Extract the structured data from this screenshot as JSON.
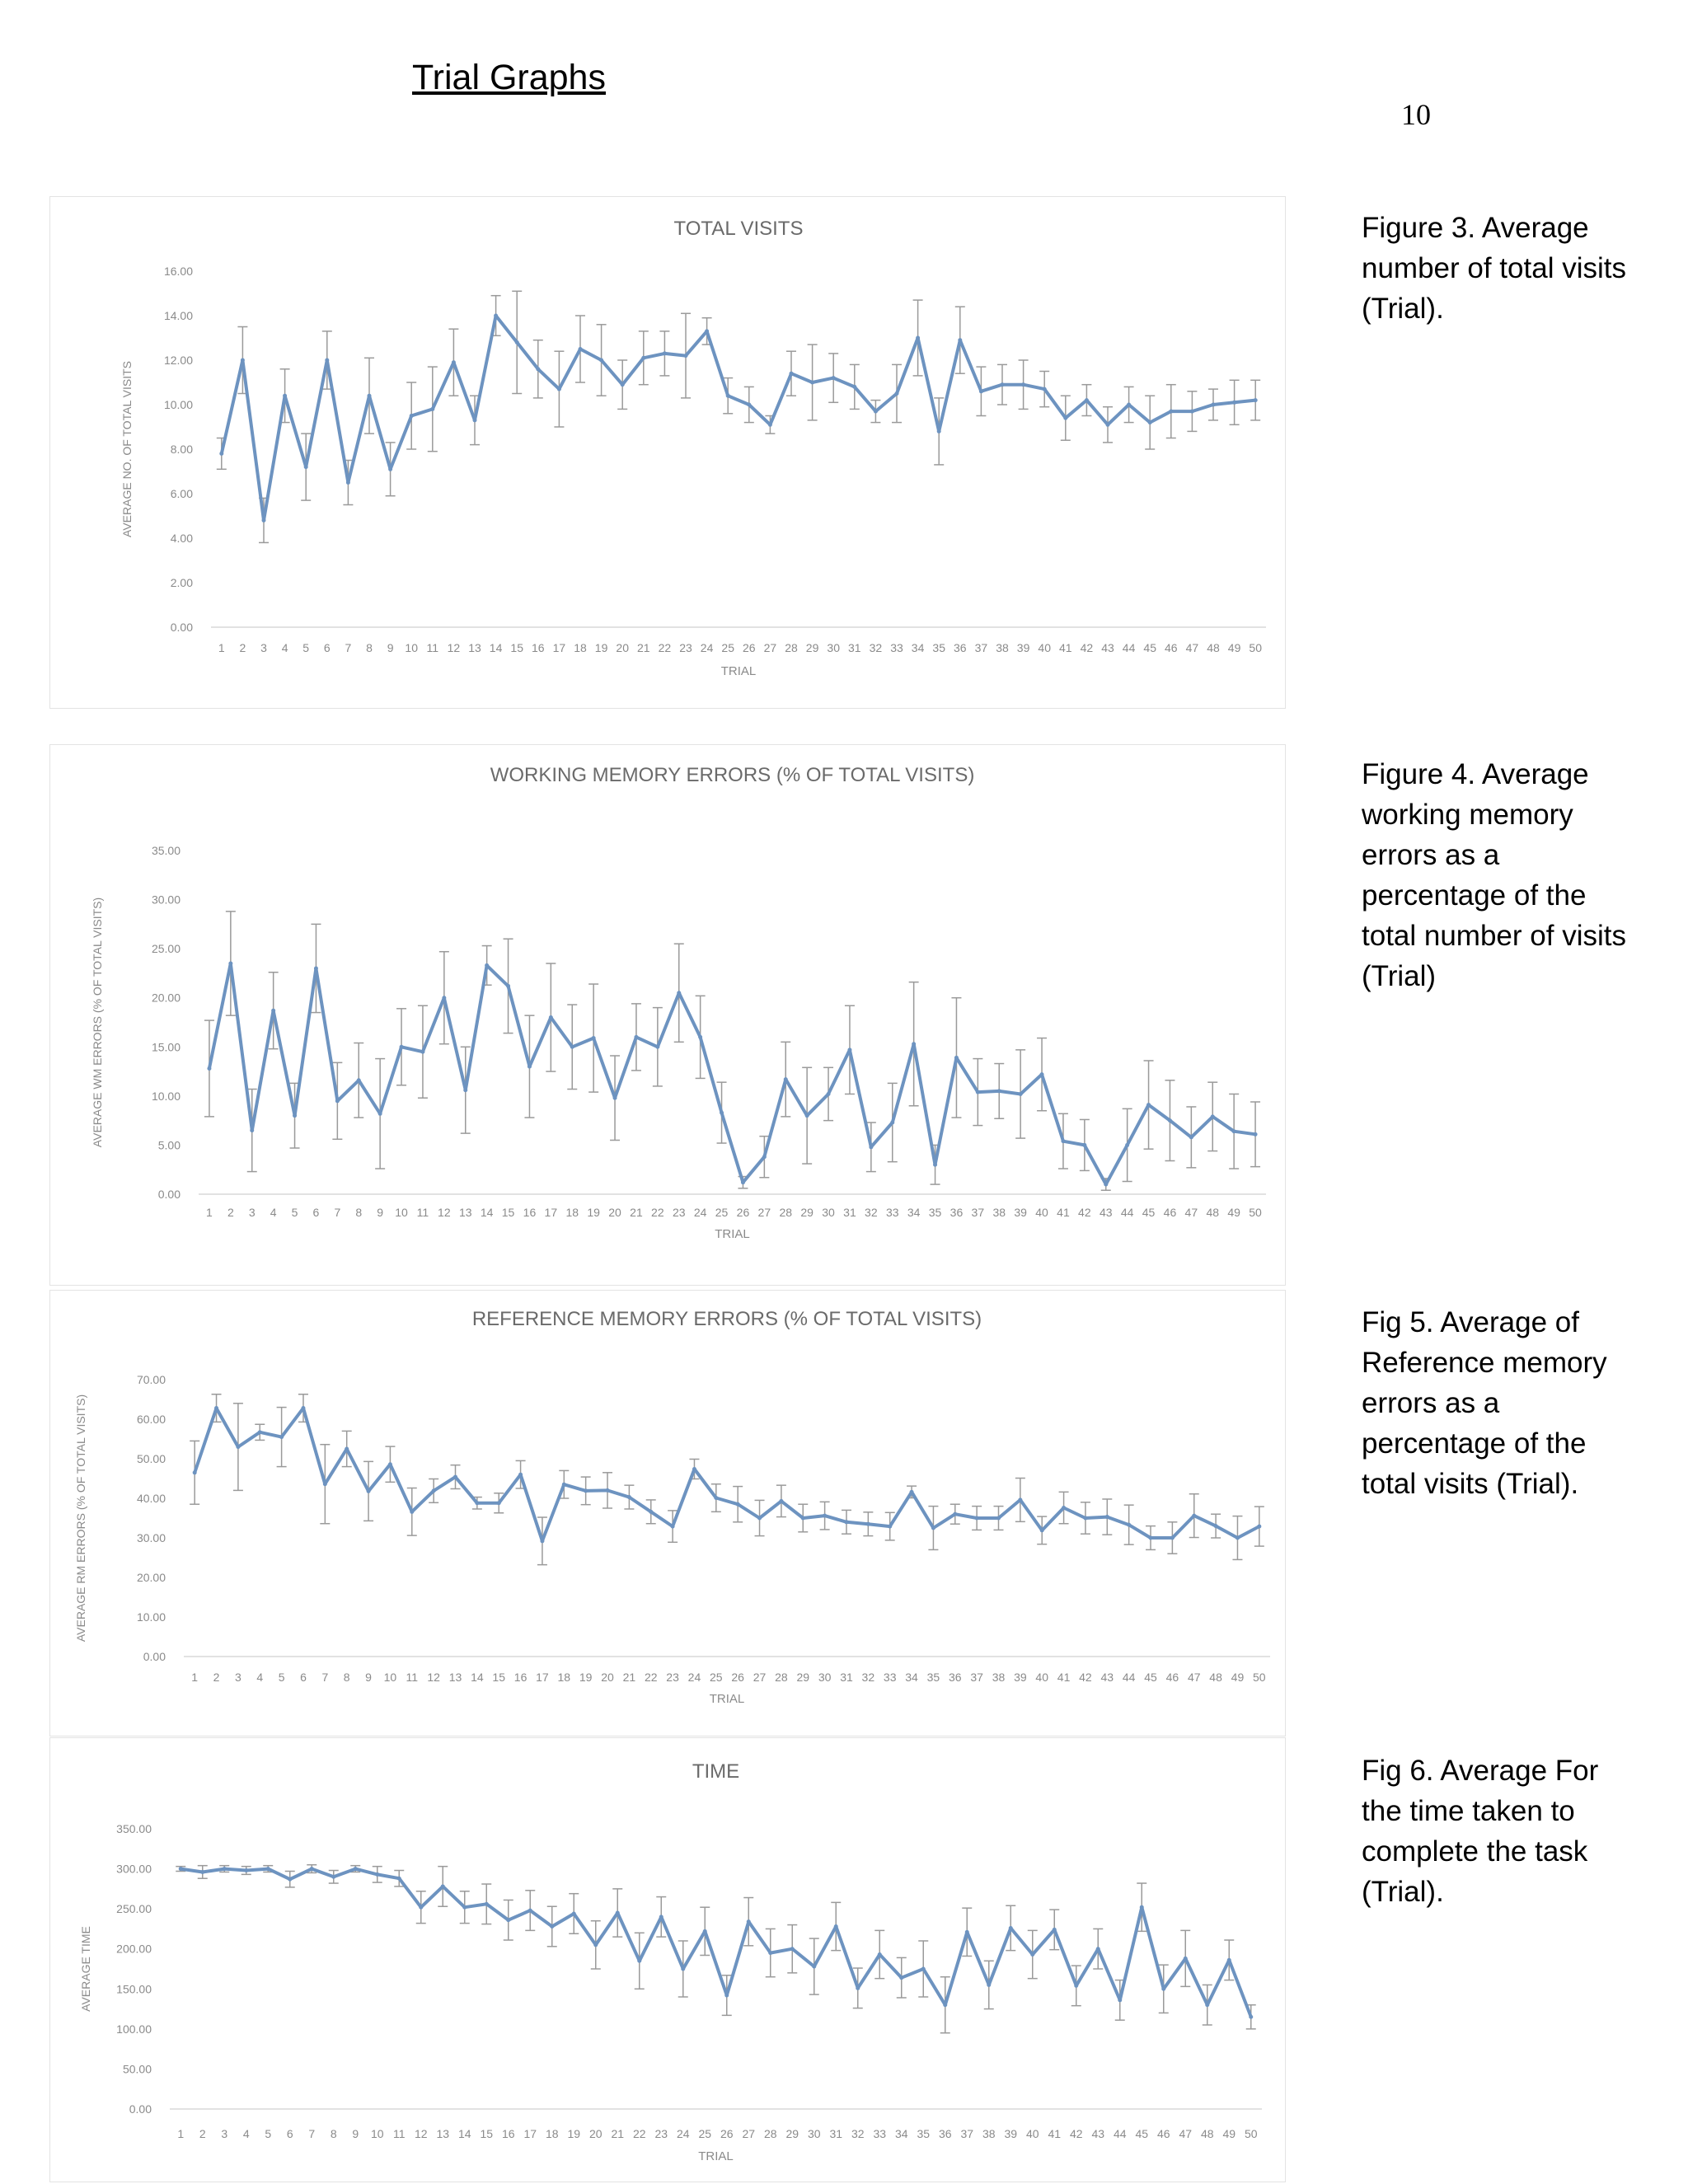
{
  "page": {
    "heading": "Trial Graphs",
    "page_number": "10"
  },
  "captions": [
    "Figure 3. Average number of total visits (Trial).",
    "Figure 4. Average working memory errors as a percentage of the total number of visits (Trial)",
    "Fig 5. Average of Reference memory errors as a percentage of the total visits (Trial).",
    "Fig 6. Average For the time taken to complete the task (Trial)."
  ],
  "colors": {
    "line": "#6d93c0",
    "error_bar": "#9a9a9a",
    "tick_text": "#8a8a8a",
    "title_text": "#6a6a6a"
  },
  "chart_data": [
    {
      "type": "line",
      "title": "TOTAL VISITS",
      "xlabel": "TRIAL",
      "ylabel": "AVERAGE NO. OF TOTAL VISITS",
      "ylim": [
        0,
        16
      ],
      "yticks": [
        "0.00",
        "2.00",
        "4.00",
        "6.00",
        "8.00",
        "10.00",
        "12.00",
        "14.00",
        "16.00"
      ],
      "x": [
        1,
        2,
        3,
        4,
        5,
        6,
        7,
        8,
        9,
        10,
        11,
        12,
        13,
        14,
        15,
        16,
        17,
        18,
        19,
        20,
        21,
        22,
        23,
        24,
        25,
        26,
        27,
        28,
        29,
        30,
        31,
        32,
        33,
        34,
        35,
        36,
        37,
        38,
        39,
        40,
        41,
        42,
        43,
        44,
        45,
        46,
        47,
        48,
        49,
        50
      ],
      "grid": false,
      "legend": "none",
      "series": [
        {
          "values": [
            7.8,
            12.0,
            4.8,
            10.4,
            7.2,
            12.0,
            6.5,
            10.4,
            7.1,
            9.5,
            9.8,
            11.9,
            9.3,
            14.0,
            12.8,
            11.6,
            10.7,
            12.5,
            12.0,
            10.9,
            12.1,
            12.3,
            12.2,
            13.3,
            10.4,
            10.0,
            9.1,
            11.4,
            11.0,
            11.2,
            10.8,
            9.7,
            10.5,
            13.0,
            8.8,
            12.9,
            10.6,
            10.9,
            10.9,
            10.7,
            9.4,
            10.2,
            9.1,
            10.0,
            9.2,
            9.7,
            9.7,
            10.0,
            10.1,
            10.2
          ],
          "errors": [
            0.7,
            1.5,
            1.0,
            1.2,
            1.5,
            1.3,
            1.0,
            1.7,
            1.2,
            1.5,
            1.9,
            1.5,
            1.1,
            0.9,
            2.3,
            1.3,
            1.7,
            1.5,
            1.6,
            1.1,
            1.2,
            1.0,
            1.9,
            0.6,
            0.8,
            0.8,
            0.4,
            1.0,
            1.7,
            1.1,
            1.0,
            0.5,
            1.3,
            1.7,
            1.5,
            1.5,
            1.1,
            0.9,
            1.1,
            0.8,
            1.0,
            0.7,
            0.8,
            0.8,
            1.2,
            1.2,
            0.9,
            0.7,
            1.0,
            0.9
          ]
        }
      ]
    },
    {
      "type": "line",
      "title": "WORKING MEMORY ERRORS (% OF TOTAL VISITS)",
      "xlabel": "TRIAL",
      "ylabel": "AVERAGE WM ERRORS (% OF TOTAL VISITS)",
      "ylim": [
        0,
        35
      ],
      "yticks": [
        "0.00",
        "5.00",
        "10.00",
        "15.00",
        "20.00",
        "25.00",
        "30.00",
        "35.00"
      ],
      "x": [
        1,
        2,
        3,
        4,
        5,
        6,
        7,
        8,
        9,
        10,
        11,
        12,
        13,
        14,
        15,
        16,
        17,
        18,
        19,
        20,
        21,
        22,
        23,
        24,
        25,
        26,
        27,
        28,
        29,
        30,
        31,
        32,
        33,
        34,
        35,
        36,
        37,
        38,
        39,
        40,
        41,
        42,
        43,
        44,
        45,
        46,
        47,
        48,
        49,
        50
      ],
      "grid": false,
      "legend": "none",
      "series": [
        {
          "values": [
            12.8,
            23.5,
            6.5,
            18.7,
            8.0,
            23.0,
            9.5,
            11.6,
            8.2,
            15.0,
            14.5,
            20.0,
            10.6,
            23.3,
            21.2,
            13.0,
            18.0,
            15.0,
            15.9,
            9.8,
            16.0,
            15.0,
            20.5,
            16.0,
            8.3,
            1.2,
            3.8,
            11.7,
            8.0,
            10.2,
            14.7,
            4.8,
            7.3,
            15.3,
            3.0,
            13.9,
            10.4,
            10.5,
            10.2,
            12.2,
            5.4,
            5.0,
            1.0,
            5.0,
            9.1,
            7.5,
            5.8,
            7.9,
            6.4,
            6.1
          ],
          "errors": [
            4.9,
            5.3,
            4.2,
            3.9,
            3.3,
            4.5,
            3.9,
            3.8,
            5.6,
            3.9,
            4.7,
            4.7,
            4.4,
            2.0,
            4.8,
            5.2,
            5.5,
            4.3,
            5.5,
            4.3,
            3.4,
            4.0,
            5.0,
            4.2,
            3.1,
            0.6,
            2.1,
            3.8,
            4.9,
            2.7,
            4.5,
            2.5,
            4.0,
            6.3,
            2.0,
            6.1,
            3.4,
            2.8,
            4.5,
            3.7,
            2.8,
            2.6,
            0.6,
            3.7,
            4.5,
            4.1,
            3.1,
            3.5,
            3.8,
            3.3
          ]
        }
      ]
    },
    {
      "type": "line",
      "title": "REFERENCE MEMORY ERRORS (% OF TOTAL VISITS)",
      "xlabel": "TRIAL",
      "ylabel": "AVERAGE RM ERRORS (% OF TOTAL VISITS)",
      "ylim": [
        0,
        70
      ],
      "yticks": [
        "0.00",
        "10.00",
        "20.00",
        "30.00",
        "40.00",
        "50.00",
        "60.00",
        "70.00"
      ],
      "x": [
        1,
        2,
        3,
        4,
        5,
        6,
        7,
        8,
        9,
        10,
        11,
        12,
        13,
        14,
        15,
        16,
        17,
        18,
        19,
        20,
        21,
        22,
        23,
        24,
        25,
        26,
        27,
        28,
        29,
        30,
        31,
        32,
        33,
        34,
        35,
        36,
        37,
        38,
        39,
        40,
        41,
        42,
        43,
        44,
        45,
        46,
        47,
        48,
        49,
        50
      ],
      "grid": false,
      "legend": "none",
      "series": [
        {
          "values": [
            46.5,
            62.8,
            53.0,
            56.7,
            55.5,
            62.8,
            43.6,
            52.5,
            41.8,
            48.6,
            36.6,
            41.9,
            45.4,
            38.8,
            38.8,
            46.0,
            29.2,
            43.5,
            41.9,
            42.0,
            40.3,
            36.6,
            32.9,
            47.4,
            40.1,
            38.5,
            35.0,
            39.3,
            35.0,
            35.6,
            34.0,
            33.5,
            32.9,
            41.6,
            32.5,
            36.0,
            35.0,
            35.0,
            39.6,
            31.9,
            37.6,
            35.0,
            35.3,
            33.3,
            30.0,
            30.0,
            35.6,
            33.0,
            30.0,
            32.9
          ],
          "errors": [
            8.0,
            3.5,
            11.0,
            2.0,
            7.5,
            3.5,
            10.0,
            4.5,
            7.5,
            4.5,
            6.0,
            3.0,
            3.0,
            1.5,
            2.5,
            3.5,
            6.0,
            3.5,
            3.5,
            4.5,
            3.0,
            3.0,
            4.0,
            2.5,
            3.5,
            4.5,
            4.5,
            4.0,
            3.5,
            3.5,
            3.0,
            3.0,
            3.5,
            1.5,
            5.5,
            2.5,
            3.0,
            3.0,
            5.5,
            3.5,
            4.0,
            4.0,
            4.5,
            5.0,
            3.0,
            4.0,
            5.5,
            3.0,
            5.5,
            5.0
          ]
        }
      ]
    },
    {
      "type": "line",
      "title": "TIME",
      "xlabel": "TRIAL",
      "ylabel": "AVERAGE TIME",
      "ylim": [
        0,
        350
      ],
      "yticks": [
        "0.00",
        "50.00",
        "100.00",
        "150.00",
        "200.00",
        "250.00",
        "300.00",
        "350.00"
      ],
      "x": [
        1,
        2,
        3,
        4,
        5,
        6,
        7,
        8,
        9,
        10,
        11,
        12,
        13,
        14,
        15,
        16,
        17,
        18,
        19,
        20,
        21,
        22,
        23,
        24,
        25,
        26,
        27,
        28,
        29,
        30,
        31,
        32,
        33,
        34,
        35,
        36,
        37,
        38,
        39,
        40,
        41,
        42,
        43,
        44,
        45,
        46,
        47,
        48,
        49,
        50
      ],
      "grid": false,
      "legend": "none",
      "series": [
        {
          "values": [
            300,
            296,
            300,
            298,
            300,
            287,
            300,
            290,
            300,
            293,
            288,
            252,
            278,
            252,
            256,
            236,
            248,
            228,
            244,
            205,
            245,
            185,
            240,
            175,
            222,
            142,
            234,
            195,
            200,
            178,
            228,
            151,
            193,
            164,
            175,
            130,
            221,
            155,
            226,
            193,
            224,
            154,
            200,
            136,
            252,
            150,
            188,
            130,
            186,
            115
          ],
          "errors": [
            3,
            8,
            4,
            5,
            4,
            10,
            5,
            8,
            4,
            10,
            10,
            20,
            25,
            20,
            25,
            25,
            25,
            25,
            25,
            30,
            30,
            35,
            25,
            35,
            30,
            25,
            30,
            30,
            30,
            35,
            30,
            25,
            30,
            25,
            35,
            35,
            30,
            30,
            28,
            30,
            25,
            25,
            25,
            25,
            30,
            30,
            35,
            25,
            25,
            15
          ]
        }
      ]
    }
  ]
}
